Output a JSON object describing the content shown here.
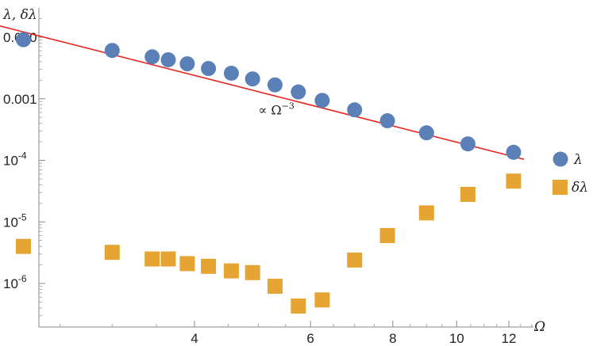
{
  "chart_data": {
    "type": "scatter",
    "xscale": "log",
    "yscale": "log",
    "xlabel": "Ω",
    "ylabel": "λ, δλ",
    "xlim": [
      2.0,
      13.5
    ],
    "ylim": [
      3e-07,
      0.016
    ],
    "x_ticks": [
      {
        "value": 4,
        "label": "4"
      },
      {
        "value": 6,
        "label": "6"
      },
      {
        "value": 8,
        "label": "8"
      },
      {
        "value": 10,
        "label": "10"
      },
      {
        "value": 12,
        "label": "12"
      }
    ],
    "y_ticks": [
      {
        "value": 0.01,
        "label": "0.010"
      },
      {
        "value": 0.001,
        "label": "0.001"
      },
      {
        "value": 0.0001,
        "label": "10",
        "exp": "-4"
      },
      {
        "value": 1e-05,
        "label": "10",
        "exp": "-5"
      },
      {
        "value": 1e-06,
        "label": "10",
        "exp": "-6"
      }
    ],
    "legend_position": "right",
    "series": [
      {
        "name": "λ",
        "marker": "circle",
        "color": "#5b80b8",
        "points": [
          [
            2.2,
            0.0091
          ],
          [
            3.0,
            0.0061
          ],
          [
            3.45,
            0.0048
          ],
          [
            3.65,
            0.0043
          ],
          [
            3.9,
            0.0037
          ],
          [
            4.2,
            0.0031
          ],
          [
            4.55,
            0.0026
          ],
          [
            4.9,
            0.0021
          ],
          [
            5.3,
            0.00168
          ],
          [
            5.75,
            0.00129
          ],
          [
            6.25,
            0.00094
          ],
          [
            7.0,
            0.00066
          ],
          [
            7.85,
            0.00044
          ],
          [
            9.0,
            0.00028
          ],
          [
            10.4,
            0.000185
          ],
          [
            12.2,
            0.000135
          ]
        ]
      },
      {
        "name": "δλ",
        "marker": "square",
        "color": "#e6a532",
        "points": [
          [
            2.2,
            4e-06
          ],
          [
            3.0,
            3.2e-06
          ],
          [
            3.45,
            2.5e-06
          ],
          [
            3.65,
            2.5e-06
          ],
          [
            3.9,
            2.1e-06
          ],
          [
            4.2,
            1.9e-06
          ],
          [
            4.55,
            1.6e-06
          ],
          [
            4.9,
            1.5e-06
          ],
          [
            5.3,
            9e-07
          ],
          [
            5.75,
            4.3e-07
          ],
          [
            6.25,
            5.4e-07
          ],
          [
            7.0,
            2.4e-06
          ],
          [
            7.85,
            6e-06
          ],
          [
            9.0,
            1.4e-05
          ],
          [
            10.4,
            2.8e-05
          ],
          [
            12.2,
            4.6e-05
          ]
        ]
      }
    ],
    "fit_line": {
      "color": "#e8241e",
      "from": [
        2.0,
        0.0158
      ],
      "to": [
        12.65,
        0.000104
      ],
      "label": "∝ Ω",
      "label_exp": "−3",
      "label_at": [
        5.0,
        0.00056
      ]
    }
  }
}
